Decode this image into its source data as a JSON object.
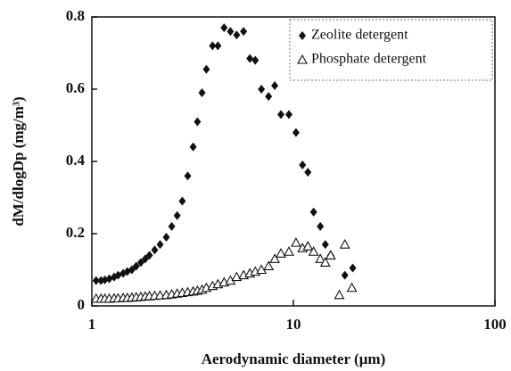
{
  "chart_data": {
    "type": "scatter",
    "x_label": "Aerodynamic diameter (µm)",
    "y_label": "dM/dlogDp (mg/m³)",
    "xscale": "log",
    "xlim": [
      1,
      100
    ],
    "xticks": [
      1,
      10,
      100
    ],
    "ylim": [
      0,
      0.8
    ],
    "yticks": [
      0,
      0.2,
      0.4,
      0.6,
      0.8
    ],
    "legend": "upper right",
    "series": [
      {
        "name": "Zeolite detergent",
        "color": "#111111",
        "marker": "diamond",
        "x": [
          1.05,
          1.11,
          1.16,
          1.22,
          1.29,
          1.35,
          1.43,
          1.5,
          1.58,
          1.66,
          1.75,
          1.84,
          1.93,
          2.05,
          2.18,
          2.34,
          2.49,
          2.65,
          2.81,
          2.99,
          3.18,
          3.34,
          3.52,
          3.7,
          3.97,
          4.22,
          4.53,
          4.87,
          5.23,
          5.66,
          6.08,
          6.47,
          6.94,
          7.53,
          8.08,
          8.67,
          9.5,
          10.3,
          11.1,
          11.8,
          12.6,
          13.6,
          14.4,
          15.3,
          18.0,
          19.7
        ],
        "values": [
          0.07,
          0.07,
          0.072,
          0.075,
          0.08,
          0.085,
          0.09,
          0.095,
          0.1,
          0.11,
          0.12,
          0.13,
          0.14,
          0.155,
          0.17,
          0.19,
          0.22,
          0.25,
          0.29,
          0.36,
          0.44,
          0.51,
          0.59,
          0.655,
          0.72,
          0.72,
          0.77,
          0.76,
          0.75,
          0.76,
          0.685,
          0.68,
          0.6,
          0.58,
          0.61,
          0.53,
          0.53,
          0.48,
          0.39,
          0.37,
          0.26,
          0.22,
          0.17,
          0.14,
          0.085,
          0.105
        ]
      },
      {
        "name": "Phosphate detergent",
        "color": "#111111",
        "marker": "triangle-open",
        "x": [
          1.05,
          1.11,
          1.16,
          1.22,
          1.29,
          1.35,
          1.43,
          1.5,
          1.58,
          1.66,
          1.75,
          1.84,
          1.93,
          2.05,
          2.18,
          2.34,
          2.49,
          2.65,
          2.81,
          2.99,
          3.18,
          3.34,
          3.52,
          3.7,
          3.97,
          4.22,
          4.53,
          4.87,
          5.23,
          5.66,
          6.08,
          6.47,
          6.94,
          7.53,
          8.08,
          8.67,
          9.5,
          10.3,
          11.1,
          11.8,
          12.6,
          13.6,
          14.4,
          15.3,
          16.9,
          18.0,
          19.5
        ],
        "values": [
          0.02,
          0.02,
          0.02,
          0.02,
          0.021,
          0.021,
          0.022,
          0.022,
          0.023,
          0.024,
          0.025,
          0.026,
          0.027,
          0.028,
          0.029,
          0.03,
          0.032,
          0.034,
          0.036,
          0.038,
          0.04,
          0.042,
          0.045,
          0.05,
          0.055,
          0.06,
          0.065,
          0.07,
          0.08,
          0.085,
          0.09,
          0.095,
          0.1,
          0.11,
          0.13,
          0.145,
          0.15,
          0.175,
          0.16,
          0.165,
          0.15,
          0.13,
          0.12,
          0.14,
          0.03,
          0.17,
          0.05
        ]
      }
    ]
  }
}
